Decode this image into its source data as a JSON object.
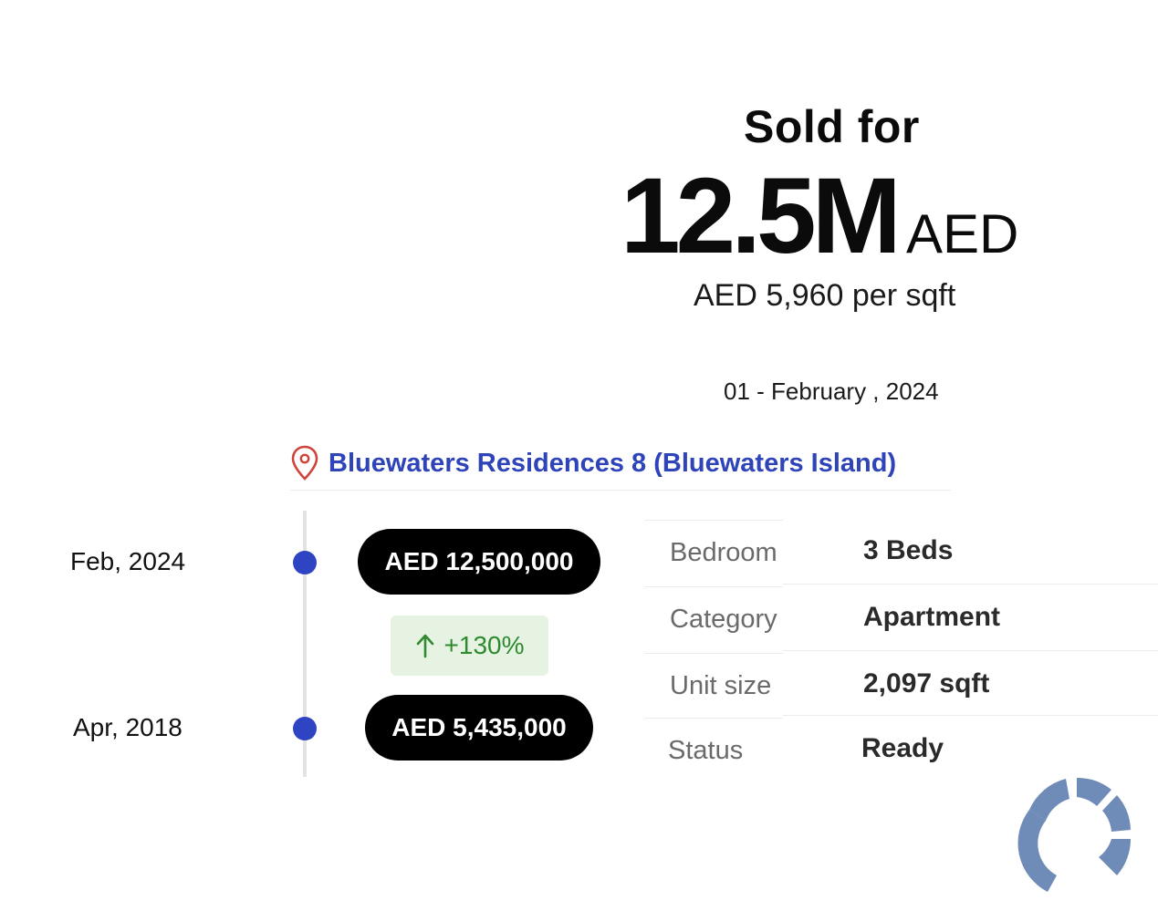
{
  "header": {
    "sold_label": "Sold for",
    "price_value": "12.5M",
    "price_currency": "AED",
    "price_per_sqft": "AED 5,960 per sqft",
    "sale_date": "01 - February , 2024"
  },
  "location": {
    "icon": "map-pin-icon",
    "name": "Bluewaters Residences 8 (Bluewaters Island)"
  },
  "history": [
    {
      "date": "Feb, 2024",
      "price": "AED 12,500,000"
    },
    {
      "date": "Apr, 2018",
      "price": "AED 5,435,000"
    }
  ],
  "change": {
    "icon": "arrow-up-icon",
    "text": "+130%"
  },
  "details": [
    {
      "label": "Bedroom",
      "value": "3 Beds"
    },
    {
      "label": "Category",
      "value": "Apartment"
    },
    {
      "label": "Unit size",
      "value": "2,097 sqft"
    },
    {
      "label": "Status",
      "value": "Ready"
    }
  ],
  "colors": {
    "accent_blue": "#2f44b8",
    "timeline_dot": "#2f44c2",
    "pill_bg": "#000000",
    "change_bg": "#e6f3e3",
    "change_text": "#2f8a2f",
    "pin_red": "#d0433a",
    "logo_blue": "#6f8bb8"
  },
  "logo": {
    "icon": "brand-logo-icon"
  }
}
